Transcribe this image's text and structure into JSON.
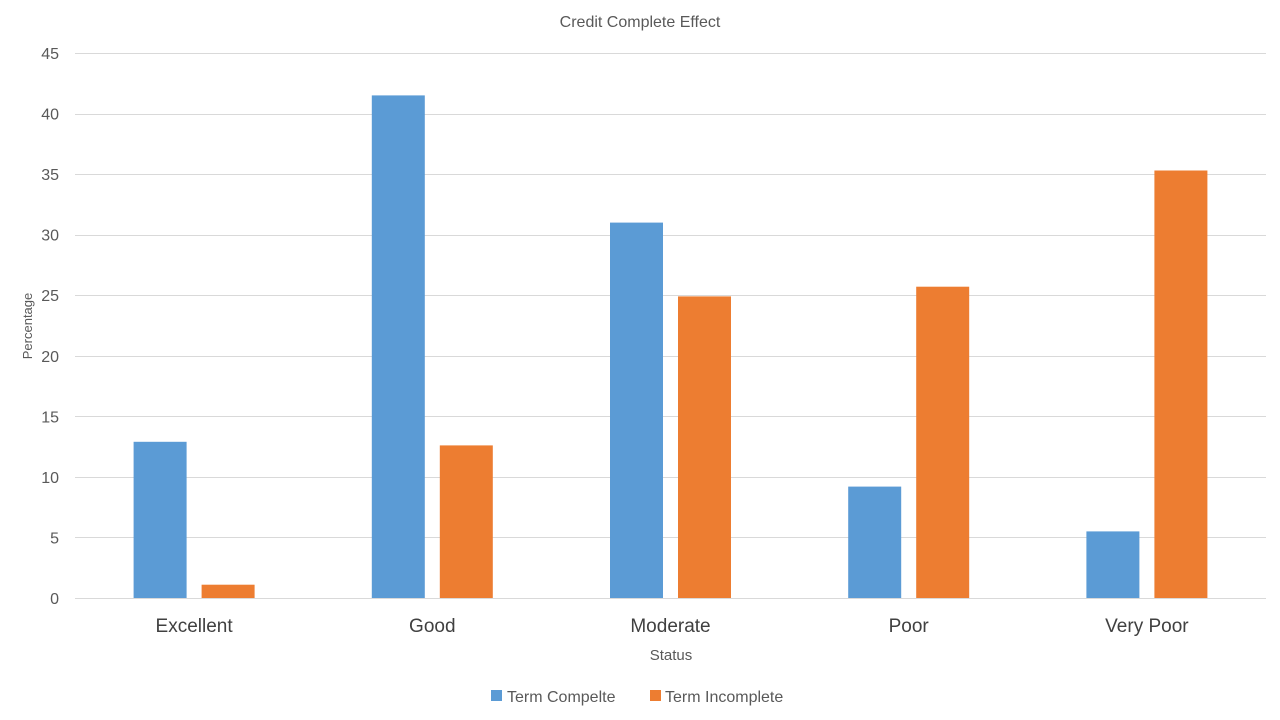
{
  "chart_data": {
    "type": "bar",
    "title": "Credit Complete Effect",
    "xlabel": "Status",
    "ylabel": "Percentage",
    "categories": [
      "Excellent",
      "Good",
      "Moderate",
      "Poor",
      "Very Poor"
    ],
    "series": [
      {
        "name": "Term Compelte",
        "color": "#5b9bd5",
        "values": [
          12.9,
          41.5,
          31.0,
          9.2,
          5.5
        ]
      },
      {
        "name": "Term Incomplete",
        "color": "#ed7d31",
        "values": [
          1.1,
          12.6,
          24.9,
          25.7,
          35.3
        ]
      }
    ],
    "ylim": [
      0,
      45
    ],
    "yticks": [
      0,
      5,
      10,
      15,
      20,
      25,
      30,
      35,
      40,
      45
    ],
    "grid": true,
    "legend_position": "bottom"
  }
}
